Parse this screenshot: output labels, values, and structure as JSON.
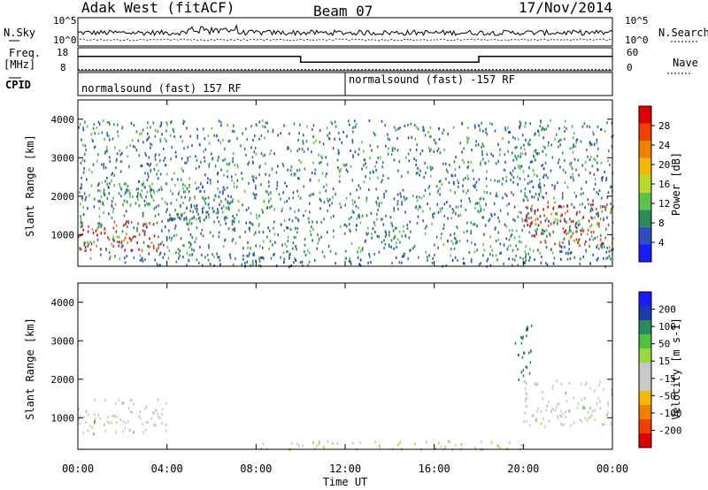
{
  "header": {
    "title": "Adak West (fitACF)",
    "beam": "Beam 07",
    "date": "17/Nov/2014"
  },
  "noise_panel": {
    "left_label": "N.Sky",
    "right_label": "N.Search",
    "y_ticks_left": [
      "10^5",
      "10^0"
    ],
    "y_ticks_right": [
      "10^5",
      "10^0"
    ]
  },
  "freq_panel": {
    "left_label_line1": "Freq.",
    "left_label_line2": "[MHz]",
    "right_label": "Nave",
    "y_ticks_left": [
      "18",
      "8"
    ],
    "y_ticks_right": [
      "60",
      "0"
    ],
    "freq_steps_mhz": [
      [
        0,
        14.5
      ],
      [
        10.0,
        11.5
      ],
      [
        18.0,
        14.5
      ],
      [
        24.0,
        14.5
      ]
    ],
    "nave_level": 3
  },
  "cpid_panel": {
    "label": "CPID",
    "segments": [
      {
        "text": "normalsound (fast) 157 RF"
      },
      {
        "text": "normalsound (fast) -157 RF"
      }
    ]
  },
  "colors": {
    "power_scale": [
      "#1a1aff",
      "#2e4fc0",
      "#2a8a5a",
      "#5cc24a",
      "#b8d830",
      "#f5b800",
      "#f08000",
      "#f04000",
      "#e00000"
    ],
    "velocity_scale": [
      "#e00000",
      "#f04000",
      "#f08000",
      "#f5b800",
      "#c8c8c8",
      "#c8c8c8",
      "#9ad83c",
      "#50c040",
      "#2a8a5a",
      "#1a3ab0",
      "#1a1aff"
    ],
    "ground_scatter": "#c8c8c8"
  },
  "chart_data": [
    {
      "type": "heatmap",
      "name": "power",
      "ylabel": "Slant Range [km]",
      "xlabel": "",
      "x_range_hours": [
        0,
        24
      ],
      "ylim": [
        180,
        4500
      ],
      "y_ticks": [
        1000,
        2000,
        3000,
        4000
      ],
      "colorbar_label": "Power [dB]",
      "colorbar_ticks": [
        "4",
        "8",
        "12",
        "16",
        "20",
        "24",
        "28"
      ],
      "colorbar_range": [
        0,
        30
      ],
      "features": [
        {
          "feature": "strong_band",
          "t_start": 0.0,
          "t_end": 4.0,
          "range_low": 600,
          "range_high": 1400,
          "level": 28
        },
        {
          "feature": "upper_band",
          "t_start": 0.0,
          "t_end": 5.0,
          "range_low": 1800,
          "range_high": 2400,
          "level": 12
        },
        {
          "feature": "rising_edge",
          "t_start": 4.0,
          "t_end": 7.0,
          "range_low": 1400,
          "range_high": 2600,
          "level": 10
        },
        {
          "feature": "near_range_band",
          "t_start": 2.0,
          "t_end": 24.0,
          "range_low": 200,
          "range_high": 450,
          "level": 8
        },
        {
          "feature": "evening_band",
          "t_start": 20.0,
          "t_end": 24.0,
          "range_low": 700,
          "range_high": 1900,
          "level": 28
        },
        {
          "feature": "evening_upper",
          "t_start": 19.5,
          "t_end": 21.0,
          "range_low": 2000,
          "range_high": 3500,
          "level": 10
        },
        {
          "feature": "scattered_noise",
          "t_start": 0.0,
          "t_end": 24.0,
          "range_low": 400,
          "range_high": 4000,
          "level": 10
        }
      ]
    },
    {
      "type": "heatmap",
      "name": "velocity",
      "ylabel": "Slant Range [km]",
      "xlabel": "Time UT",
      "x_ticks": [
        "00:00",
        "04:00",
        "08:00",
        "12:00",
        "16:00",
        "20:00",
        "00:00"
      ],
      "x_range_hours": [
        0,
        24
      ],
      "ylim": [
        180,
        4500
      ],
      "y_ticks": [
        1000,
        2000,
        3000,
        4000
      ],
      "colorbar_label": "Velocity [m s-1]",
      "colorbar_ticks": [
        "-200",
        "-100",
        "-50",
        "-15",
        "15",
        "50",
        "100",
        "200"
      ],
      "colorbar_range": [
        -250,
        250
      ],
      "features": [
        {
          "feature": "ground_scatter_morning",
          "t_start": 0.0,
          "t_end": 4.0,
          "range_low": 600,
          "range_high": 1500
        },
        {
          "feature": "near_range_negative",
          "t_start": 8.0,
          "t_end": 20.0,
          "range_low": 200,
          "range_high": 420,
          "velocity": -60
        },
        {
          "feature": "evening_ground",
          "t_start": 20.0,
          "t_end": 24.0,
          "range_low": 800,
          "range_high": 2000
        },
        {
          "feature": "evening_positive",
          "t_start": 19.6,
          "t_end": 20.4,
          "range_low": 2000,
          "range_high": 3500,
          "velocity": 150
        }
      ]
    }
  ]
}
